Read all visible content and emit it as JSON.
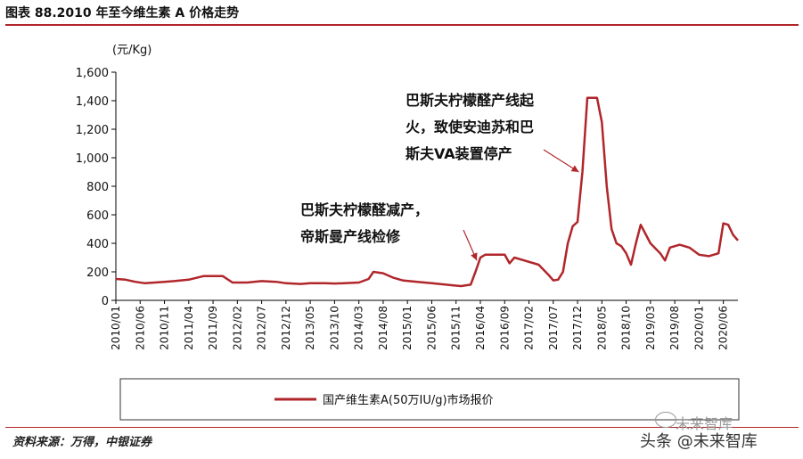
{
  "title": "图表 88.2010 年至今维生素 A 价格走势",
  "source": "资料来源：万得，中银证券",
  "watermark": {
    "top": "未来智库",
    "bottom": "头条 @未来智库"
  },
  "chart_data": {
    "type": "line",
    "unit_label": "(元/Kg)",
    "ylim": [
      0,
      1600
    ],
    "yticks": [
      "0",
      "200",
      "400",
      "600",
      "800",
      "1,000",
      "1,200",
      "1,400",
      "1,600"
    ],
    "ytick_values": [
      0,
      200,
      400,
      600,
      800,
      1000,
      1200,
      1400,
      1600
    ],
    "xtick_labels": [
      "2010/01",
      "2010/06",
      "2010/11",
      "2011/04",
      "2011/09",
      "2012/02",
      "2012/07",
      "2012/12",
      "2013/05",
      "2013/10",
      "2014/03",
      "2014/08",
      "2015/01",
      "2015/06",
      "2015/11",
      "2016/04",
      "2016/09",
      "2017/02",
      "2017/07",
      "2017/12",
      "2018/05",
      "2018/10",
      "2019/03",
      "2019/08",
      "2020/01",
      "2020/06"
    ],
    "grid": false,
    "legend_position": "bottom",
    "color": "#b0262a",
    "series": [
      {
        "name": "国产维生素A(50万IU/g)市场报价",
        "points": [
          [
            "2010/01",
            150
          ],
          [
            "2010/03",
            145
          ],
          [
            "2010/05",
            130
          ],
          [
            "2010/07",
            120
          ],
          [
            "2010/09",
            125
          ],
          [
            "2010/11",
            130
          ],
          [
            "2011/01",
            135
          ],
          [
            "2011/04",
            145
          ],
          [
            "2011/07",
            170
          ],
          [
            "2011/09",
            170
          ],
          [
            "2011/11",
            170
          ],
          [
            "2012/01",
            125
          ],
          [
            "2012/04",
            125
          ],
          [
            "2012/07",
            135
          ],
          [
            "2012/10",
            130
          ],
          [
            "2012/12",
            120
          ],
          [
            "2013/03",
            115
          ],
          [
            "2013/05",
            120
          ],
          [
            "2013/08",
            120
          ],
          [
            "2013/10",
            118
          ],
          [
            "2013/12",
            120
          ],
          [
            "2014/03",
            125
          ],
          [
            "2014/05",
            150
          ],
          [
            "2014/06",
            200
          ],
          [
            "2014/08",
            190
          ],
          [
            "2014/10",
            160
          ],
          [
            "2014/12",
            140
          ],
          [
            "2015/03",
            130
          ],
          [
            "2015/06",
            120
          ],
          [
            "2015/09",
            110
          ],
          [
            "2015/12",
            100
          ],
          [
            "2016/02",
            110
          ],
          [
            "2016/03",
            200
          ],
          [
            "2016/04",
            300
          ],
          [
            "2016/05",
            320
          ],
          [
            "2016/09",
            320
          ],
          [
            "2016/10",
            260
          ],
          [
            "2016/11",
            300
          ],
          [
            "2017/01",
            280
          ],
          [
            "2017/04",
            250
          ],
          [
            "2017/06",
            180
          ],
          [
            "2017/07",
            140
          ],
          [
            "2017/08",
            145
          ],
          [
            "2017/09",
            200
          ],
          [
            "2017/10",
            400
          ],
          [
            "2017/11",
            520
          ],
          [
            "2017/12",
            550
          ],
          [
            "2018/01",
            900
          ],
          [
            "2018/02",
            1420
          ],
          [
            "2018/04",
            1420
          ],
          [
            "2018/05",
            1250
          ],
          [
            "2018/06",
            800
          ],
          [
            "2018/07",
            500
          ],
          [
            "2018/08",
            400
          ],
          [
            "2018/09",
            380
          ],
          [
            "2018/10",
            330
          ],
          [
            "2018/11",
            250
          ],
          [
            "2018/12",
            400
          ],
          [
            "2019/01",
            530
          ],
          [
            "2019/03",
            400
          ],
          [
            "2019/05",
            330
          ],
          [
            "2019/06",
            280
          ],
          [
            "2019/07",
            370
          ],
          [
            "2019/09",
            390
          ],
          [
            "2019/11",
            370
          ],
          [
            "2020/01",
            320
          ],
          [
            "2020/03",
            310
          ],
          [
            "2020/05",
            330
          ],
          [
            "2020/06",
            540
          ],
          [
            "2020/07",
            530
          ],
          [
            "2020/08",
            460
          ],
          [
            "2020/09",
            420
          ]
        ]
      }
    ],
    "annotations": [
      {
        "lines": [
          "巴斯夫柠檬醛产线起",
          "火，致使安迪苏和巴",
          "斯夫VA装置停产"
        ],
        "target": [
          "2018/01",
          900
        ]
      },
      {
        "lines": [
          "巴斯夫柠檬醛减产，",
          "帝斯曼产线检修"
        ],
        "target": [
          "2016/04",
          280
        ]
      }
    ]
  }
}
